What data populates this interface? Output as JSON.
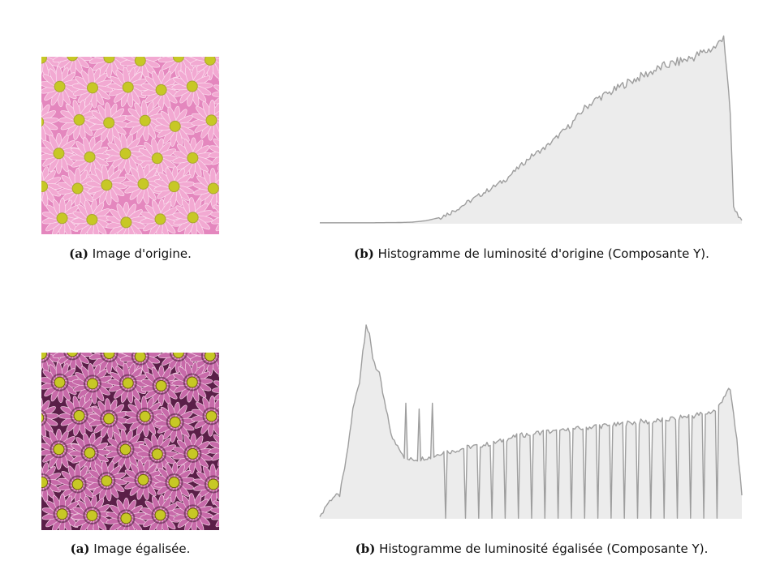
{
  "figures": [
    {
      "photo_variant": "original",
      "image_caption": {
        "tag": "(a)",
        "text": " Image d'origine."
      },
      "chart_caption": {
        "tag": "(b)",
        "text": " Histogramme de luminosité d'origine (Composante Y)."
      }
    },
    {
      "photo_variant": "equalized",
      "image_caption": {
        "tag": "(a)",
        "text": " Image égalisée."
      },
      "chart_caption": {
        "tag": "(b)",
        "text": " Histogramme de luminosité égalisée (Composante Y)."
      }
    }
  ],
  "colors": {
    "fill": "#ececec",
    "line": "#9e9e9e",
    "petal_original": "#f2a9d2",
    "petal_equalized": "#c76aa9",
    "center": "#c7c825"
  },
  "chart_data": [
    {
      "type": "area",
      "title": "",
      "xlabel": "",
      "ylabel": "",
      "xlim": [
        0,
        255
      ],
      "ylim": [
        0,
        100
      ],
      "grid": false,
      "axes_visible": false,
      "x": [
        0,
        16,
        32,
        48,
        56,
        64,
        72,
        80,
        88,
        96,
        104,
        112,
        120,
        128,
        136,
        144,
        152,
        160,
        168,
        176,
        184,
        192,
        200,
        208,
        216,
        224,
        232,
        240,
        244,
        248,
        250,
        256
      ],
      "values": [
        0.5,
        0.5,
        0.5,
        0.6,
        0.8,
        1.5,
        3,
        6,
        10,
        14,
        18,
        22,
        28,
        34,
        38,
        44,
        50,
        58,
        63,
        66,
        70,
        73,
        76,
        79,
        81,
        83,
        86,
        89,
        95,
        55,
        8,
        0.5
      ]
    },
    {
      "type": "area",
      "title": "",
      "xlabel": "",
      "ylabel": "",
      "xlim": [
        0,
        255
      ],
      "ylim": [
        0,
        100
      ],
      "grid": false,
      "axes_visible": false,
      "x": [
        0,
        4,
        8,
        12,
        16,
        20,
        24,
        28,
        32,
        36,
        40,
        44,
        48,
        52,
        56,
        60,
        64,
        68,
        72,
        76,
        80,
        88,
        96,
        104,
        112,
        120,
        128,
        136,
        144,
        152,
        160,
        168,
        176,
        184,
        192,
        200,
        208,
        216,
        224,
        232,
        240,
        244,
        248,
        252,
        256
      ],
      "values": [
        1,
        7,
        11,
        12,
        30,
        55,
        70,
        100,
        82,
        72,
        55,
        40,
        36,
        30,
        30,
        30,
        31,
        31,
        33,
        34,
        34,
        36,
        37,
        38,
        40,
        42,
        43,
        44,
        44,
        45,
        46,
        47,
        47,
        48,
        49,
        49,
        50,
        51,
        52,
        53,
        55,
        62,
        65,
        40,
        1
      ],
      "spikes_to_baseline": [
        76,
        88,
        96,
        104,
        112,
        120,
        128,
        136,
        144,
        152,
        160,
        168,
        176,
        184,
        192,
        200,
        208,
        216,
        224,
        232,
        240
      ],
      "spikes_up": [
        52,
        60,
        68
      ]
    }
  ]
}
